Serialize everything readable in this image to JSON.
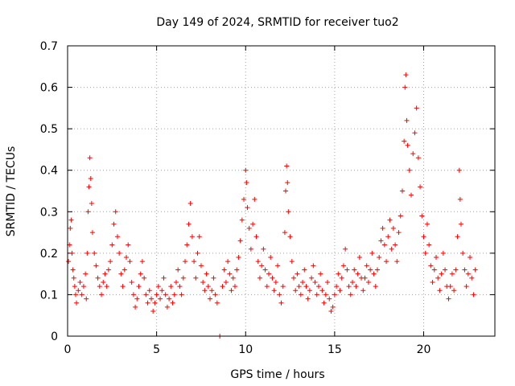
{
  "chart_data": {
    "type": "scatter",
    "title": "Day 149 of 2024, SRMTID for receiver tuo2",
    "xlabel": "GPS time / hours",
    "ylabel": "SRMTID / TECUs",
    "xlim": [
      0,
      24
    ],
    "ylim": [
      0,
      0.7
    ],
    "xticks": [
      0,
      5,
      10,
      15,
      20
    ],
    "yticks": [
      0,
      0.1,
      0.2,
      0.3,
      0.4,
      0.5,
      0.6,
      0.7
    ],
    "xtick_labels": [
      "0",
      "5",
      "10",
      "15",
      "20"
    ],
    "ytick_labels": [
      "0",
      "0.1",
      "0.2",
      "0.3",
      "0.4",
      "0.5",
      "0.6",
      "0.7"
    ],
    "grid": true,
    "marker": "+",
    "color": "#ff0000",
    "series": [
      {
        "name": "SRMTID",
        "points": [
          [
            0.05,
            0.18
          ],
          [
            0.1,
            0.22
          ],
          [
            0.15,
            0.26
          ],
          [
            0.2,
            0.28
          ],
          [
            0.25,
            0.2
          ],
          [
            0.3,
            0.16
          ],
          [
            0.35,
            0.14
          ],
          [
            0.4,
            0.12
          ],
          [
            0.45,
            0.1
          ],
          [
            0.5,
            0.08
          ],
          [
            0.6,
            0.11
          ],
          [
            0.7,
            0.13
          ],
          [
            0.8,
            0.1
          ],
          [
            0.9,
            0.12
          ],
          [
            1.0,
            0.15
          ],
          [
            1.05,
            0.09
          ],
          [
            1.1,
            0.2
          ],
          [
            1.15,
            0.3
          ],
          [
            1.2,
            0.36
          ],
          [
            1.25,
            0.43
          ],
          [
            1.3,
            0.38
          ],
          [
            1.35,
            0.32
          ],
          [
            1.4,
            0.25
          ],
          [
            1.5,
            0.2
          ],
          [
            1.6,
            0.17
          ],
          [
            1.7,
            0.14
          ],
          [
            1.8,
            0.12
          ],
          [
            1.9,
            0.1
          ],
          [
            2.0,
            0.13
          ],
          [
            2.1,
            0.15
          ],
          [
            2.2,
            0.12
          ],
          [
            2.3,
            0.16
          ],
          [
            2.4,
            0.18
          ],
          [
            2.5,
            0.22
          ],
          [
            2.6,
            0.27
          ],
          [
            2.7,
            0.3
          ],
          [
            2.8,
            0.24
          ],
          [
            2.9,
            0.2
          ],
          [
            3.0,
            0.15
          ],
          [
            3.1,
            0.12
          ],
          [
            3.2,
            0.16
          ],
          [
            3.3,
            0.19
          ],
          [
            3.4,
            0.22
          ],
          [
            3.5,
            0.18
          ],
          [
            3.6,
            0.13
          ],
          [
            3.7,
            0.1
          ],
          [
            3.8,
            0.07
          ],
          [
            3.9,
            0.09
          ],
          [
            4.0,
            0.12
          ],
          [
            4.1,
            0.15
          ],
          [
            4.2,
            0.18
          ],
          [
            4.3,
            0.14
          ],
          [
            4.4,
            0.1
          ],
          [
            4.5,
            0.08
          ],
          [
            4.6,
            0.11
          ],
          [
            4.7,
            0.09
          ],
          [
            4.8,
            0.06
          ],
          [
            4.9,
            0.08
          ],
          [
            5.0,
            0.1
          ],
          [
            5.1,
            0.12
          ],
          [
            5.2,
            0.09
          ],
          [
            5.3,
            0.11
          ],
          [
            5.4,
            0.14
          ],
          [
            5.5,
            0.1
          ],
          [
            5.6,
            0.07
          ],
          [
            5.7,
            0.09
          ],
          [
            5.8,
            0.12
          ],
          [
            5.9,
            0.08
          ],
          [
            6.0,
            0.1
          ],
          [
            6.1,
            0.13
          ],
          [
            6.2,
            0.16
          ],
          [
            6.3,
            0.12
          ],
          [
            6.4,
            0.1
          ],
          [
            6.5,
            0.14
          ],
          [
            6.6,
            0.18
          ],
          [
            6.7,
            0.22
          ],
          [
            6.8,
            0.27
          ],
          [
            6.9,
            0.32
          ],
          [
            7.0,
            0.24
          ],
          [
            7.1,
            0.18
          ],
          [
            7.2,
            0.14
          ],
          [
            7.3,
            0.2
          ],
          [
            7.4,
            0.24
          ],
          [
            7.5,
            0.17
          ],
          [
            7.6,
            0.13
          ],
          [
            7.7,
            0.11
          ],
          [
            7.8,
            0.15
          ],
          [
            7.9,
            0.12
          ],
          [
            8.0,
            0.09
          ],
          [
            8.1,
            0.11
          ],
          [
            8.2,
            0.14
          ],
          [
            8.3,
            0.1
          ],
          [
            8.4,
            0.08
          ],
          [
            8.55,
            0.0
          ],
          [
            8.7,
            0.12
          ],
          [
            8.8,
            0.16
          ],
          [
            8.9,
            0.13
          ],
          [
            9.0,
            0.18
          ],
          [
            9.1,
            0.15
          ],
          [
            9.2,
            0.11
          ],
          [
            9.3,
            0.14
          ],
          [
            9.4,
            0.12
          ],
          [
            9.5,
            0.16
          ],
          [
            9.6,
            0.19
          ],
          [
            9.7,
            0.23
          ],
          [
            9.8,
            0.28
          ],
          [
            9.9,
            0.33
          ],
          [
            10.0,
            0.4
          ],
          [
            10.05,
            0.37
          ],
          [
            10.1,
            0.31
          ],
          [
            10.2,
            0.26
          ],
          [
            10.3,
            0.21
          ],
          [
            10.4,
            0.27
          ],
          [
            10.5,
            0.33
          ],
          [
            10.6,
            0.24
          ],
          [
            10.7,
            0.18
          ],
          [
            10.8,
            0.14
          ],
          [
            10.9,
            0.17
          ],
          [
            11.0,
            0.21
          ],
          [
            11.1,
            0.16
          ],
          [
            11.2,
            0.12
          ],
          [
            11.3,
            0.15
          ],
          [
            11.4,
            0.19
          ],
          [
            11.5,
            0.14
          ],
          [
            11.6,
            0.11
          ],
          [
            11.7,
            0.13
          ],
          [
            11.8,
            0.17
          ],
          [
            11.9,
            0.1
          ],
          [
            12.0,
            0.08
          ],
          [
            12.1,
            0.12
          ],
          [
            12.2,
            0.25
          ],
          [
            12.25,
            0.35
          ],
          [
            12.3,
            0.41
          ],
          [
            12.35,
            0.37
          ],
          [
            12.4,
            0.3
          ],
          [
            12.5,
            0.24
          ],
          [
            12.6,
            0.18
          ],
          [
            12.7,
            0.14
          ],
          [
            12.8,
            0.11
          ],
          [
            12.9,
            0.15
          ],
          [
            13.0,
            0.12
          ],
          [
            13.1,
            0.1
          ],
          [
            13.2,
            0.13
          ],
          [
            13.3,
            0.16
          ],
          [
            13.4,
            0.12
          ],
          [
            13.5,
            0.09
          ],
          [
            13.6,
            0.11
          ],
          [
            13.7,
            0.14
          ],
          [
            13.8,
            0.17
          ],
          [
            13.9,
            0.13
          ],
          [
            14.0,
            0.1
          ],
          [
            14.1,
            0.12
          ],
          [
            14.2,
            0.15
          ],
          [
            14.3,
            0.11
          ],
          [
            14.4,
            0.08
          ],
          [
            14.5,
            0.1
          ],
          [
            14.6,
            0.13
          ],
          [
            14.7,
            0.09
          ],
          [
            14.8,
            0.06
          ],
          [
            14.9,
            0.07
          ],
          [
            15.0,
            0.1
          ],
          [
            15.1,
            0.12
          ],
          [
            15.2,
            0.15
          ],
          [
            15.3,
            0.11
          ],
          [
            15.4,
            0.14
          ],
          [
            15.5,
            0.17
          ],
          [
            15.6,
            0.21
          ],
          [
            15.7,
            0.16
          ],
          [
            15.8,
            0.12
          ],
          [
            15.9,
            0.1
          ],
          [
            16.0,
            0.13
          ],
          [
            16.1,
            0.16
          ],
          [
            16.2,
            0.12
          ],
          [
            16.3,
            0.15
          ],
          [
            16.4,
            0.19
          ],
          [
            16.5,
            0.14
          ],
          [
            16.6,
            0.11
          ],
          [
            16.7,
            0.14
          ],
          [
            16.8,
            0.17
          ],
          [
            16.9,
            0.13
          ],
          [
            17.0,
            0.16
          ],
          [
            17.1,
            0.2
          ],
          [
            17.2,
            0.15
          ],
          [
            17.3,
            0.12
          ],
          [
            17.4,
            0.16
          ],
          [
            17.5,
            0.19
          ],
          [
            17.6,
            0.23
          ],
          [
            17.7,
            0.26
          ],
          [
            17.8,
            0.22
          ],
          [
            17.9,
            0.18
          ],
          [
            18.0,
            0.24
          ],
          [
            18.1,
            0.28
          ],
          [
            18.2,
            0.21
          ],
          [
            18.3,
            0.26
          ],
          [
            18.4,
            0.22
          ],
          [
            18.5,
            0.18
          ],
          [
            18.6,
            0.25
          ],
          [
            18.7,
            0.29
          ],
          [
            18.8,
            0.35
          ],
          [
            18.9,
            0.47
          ],
          [
            18.95,
            0.6
          ],
          [
            19.0,
            0.63
          ],
          [
            19.05,
            0.52
          ],
          [
            19.1,
            0.46
          ],
          [
            19.2,
            0.4
          ],
          [
            19.3,
            0.34
          ],
          [
            19.4,
            0.44
          ],
          [
            19.5,
            0.49
          ],
          [
            19.6,
            0.55
          ],
          [
            19.7,
            0.43
          ],
          [
            19.8,
            0.36
          ],
          [
            19.9,
            0.29
          ],
          [
            20.0,
            0.24
          ],
          [
            20.1,
            0.2
          ],
          [
            20.2,
            0.27
          ],
          [
            20.3,
            0.22
          ],
          [
            20.4,
            0.17
          ],
          [
            20.5,
            0.13
          ],
          [
            20.6,
            0.16
          ],
          [
            20.7,
            0.19
          ],
          [
            20.8,
            0.14
          ],
          [
            20.9,
            0.11
          ],
          [
            21.0,
            0.15
          ],
          [
            21.1,
            0.2
          ],
          [
            21.2,
            0.16
          ],
          [
            21.3,
            0.12
          ],
          [
            21.4,
            0.09
          ],
          [
            21.5,
            0.12
          ],
          [
            21.6,
            0.15
          ],
          [
            21.7,
            0.11
          ],
          [
            21.8,
            0.16
          ],
          [
            21.9,
            0.24
          ],
          [
            22.0,
            0.4
          ],
          [
            22.05,
            0.33
          ],
          [
            22.1,
            0.27
          ],
          [
            22.2,
            0.2
          ],
          [
            22.3,
            0.16
          ],
          [
            22.4,
            0.12
          ],
          [
            22.5,
            0.15
          ],
          [
            22.6,
            0.19
          ],
          [
            22.7,
            0.14
          ],
          [
            22.8,
            0.1
          ],
          [
            22.9,
            0.16
          ]
        ]
      }
    ]
  }
}
